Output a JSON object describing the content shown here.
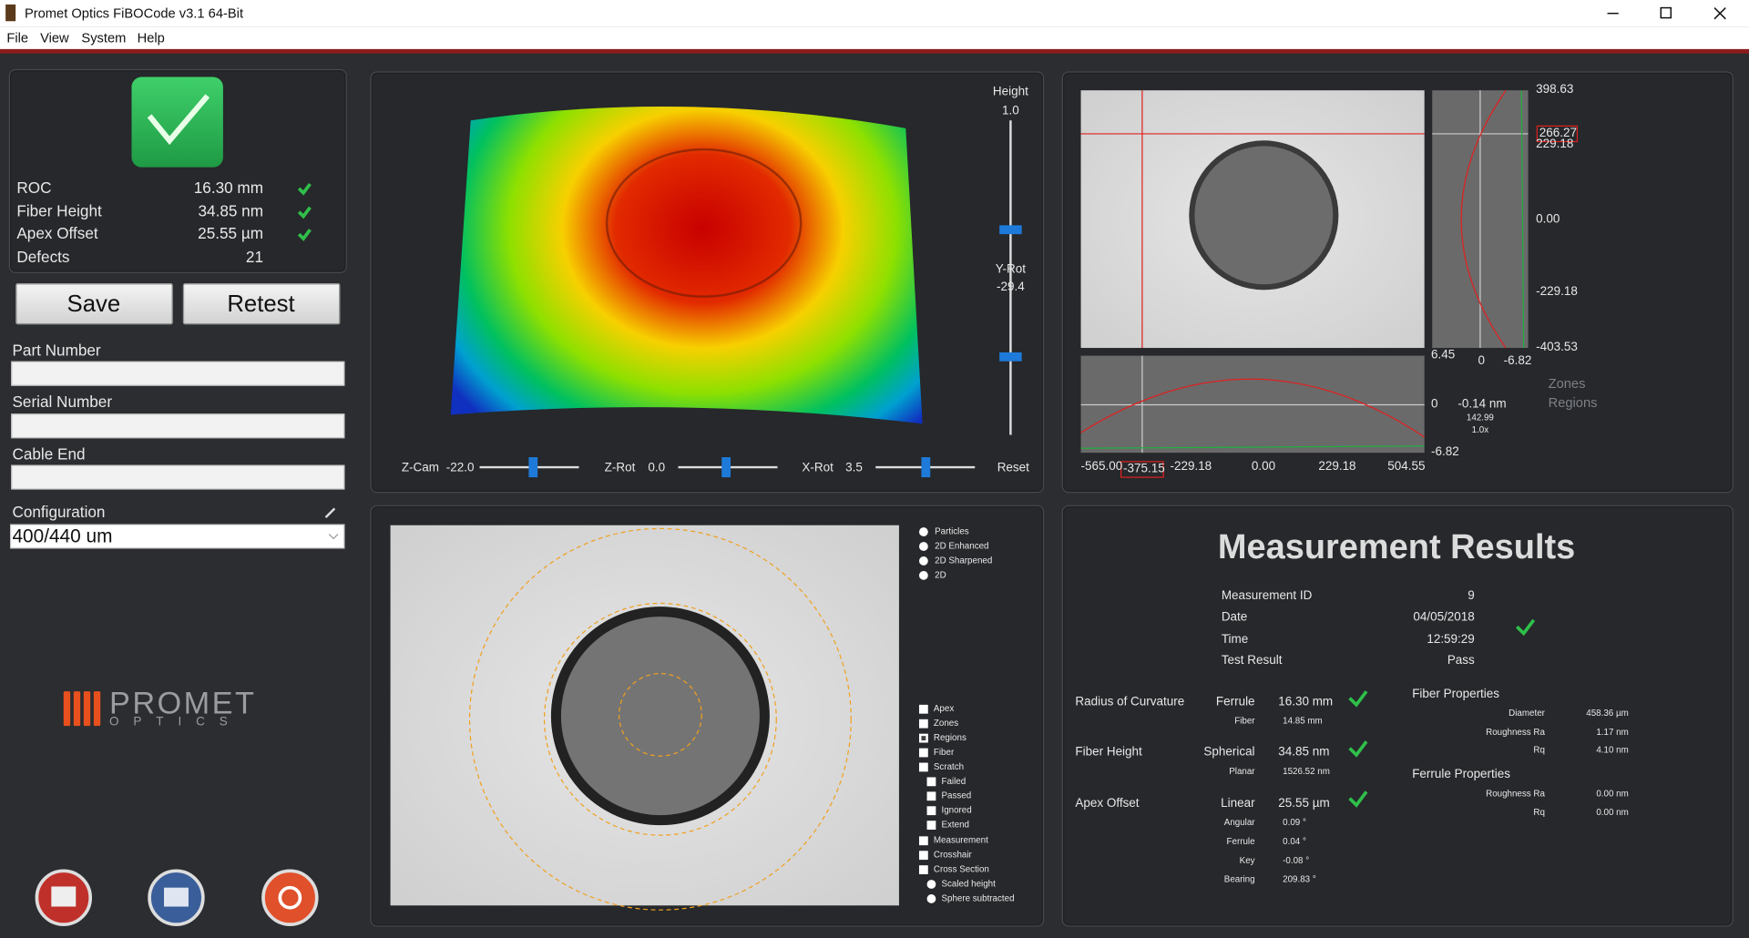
{
  "window": {
    "title": "Promet Optics FiBOCode v3.1 64-Bit",
    "menu": [
      "File",
      "View",
      "System",
      "Help"
    ]
  },
  "summary": {
    "rows": [
      {
        "label": "ROC",
        "value": "16.30 mm"
      },
      {
        "label": "Fiber Height",
        "value": "34.85 nm"
      },
      {
        "label": "Apex Offset",
        "value": "25.55 µm"
      },
      {
        "label": "Defects",
        "value": "21"
      }
    ]
  },
  "actions": [
    "Save",
    "Retest"
  ],
  "form": {
    "fields": [
      "Part Number",
      "Serial Number",
      "Cable End"
    ],
    "configuration": {
      "label": "Configuration",
      "value": "400/440 um"
    }
  },
  "logo": {
    "name": "PROMET",
    "sub": "OPTICS"
  },
  "view3d": {
    "height": {
      "label": "Height",
      "value": "1.0"
    },
    "yrot": {
      "label": "Y-Rot",
      "value": "-29.4"
    },
    "controls": [
      {
        "label": "Z-Cam",
        "value": "-22.0"
      },
      {
        "label": "Z-Rot",
        "value": "0.0"
      },
      {
        "label": "X-Rot",
        "value": "3.5"
      }
    ],
    "reset": "Reset"
  },
  "profile": {
    "y_labels": [
      "398.63",
      "229.18",
      "0.00",
      "-229.18",
      "-403.53"
    ],
    "cursor_y": "266.27",
    "side_scale": [
      "6.45",
      "0",
      "-6.82"
    ],
    "bottom_scale": [
      "0",
      "-6.82"
    ],
    "readout": [
      "-0.14 nm",
      "142.99",
      "1.0x"
    ],
    "x_labels": [
      "-565.00",
      "-229.18",
      "0.00",
      "229.18",
      "504.55"
    ],
    "cursor_x": "-375.15",
    "legend": [
      "Zones",
      "Regions"
    ]
  },
  "image": {
    "modes": [
      "Particles",
      "2D Enhanced",
      "2D Sharpened",
      "2D"
    ],
    "options": [
      {
        "label": "Apex",
        "checked": false,
        "indent": false
      },
      {
        "label": "Zones",
        "checked": false,
        "indent": false
      },
      {
        "label": "Regions",
        "checked": true,
        "indent": false
      },
      {
        "label": "Fiber",
        "checked": false,
        "indent": false
      },
      {
        "label": "Scratch",
        "checked": false,
        "indent": false
      },
      {
        "label": "Failed",
        "checked": false,
        "indent": true
      },
      {
        "label": "Passed",
        "checked": false,
        "indent": true
      },
      {
        "label": "Ignored",
        "checked": false,
        "indent": true
      },
      {
        "label": "Extend",
        "checked": false,
        "indent": true
      },
      {
        "label": "Measurement",
        "checked": false,
        "indent": false
      },
      {
        "label": "Crosshair",
        "checked": false,
        "indent": false
      },
      {
        "label": "Cross Section",
        "checked": false,
        "indent": false
      }
    ],
    "section_modes": [
      "Scaled height",
      "Sphere subtracted"
    ]
  },
  "results": {
    "title": "Measurement Results",
    "info": [
      {
        "label": "Measurement ID",
        "value": "9"
      },
      {
        "label": "Date",
        "value": "04/05/2018"
      },
      {
        "label": "Time",
        "value": "12:59:29"
      },
      {
        "label": "Test Result",
        "value": "Pass"
      }
    ],
    "metrics": [
      {
        "name": "Radius of Curvature",
        "rows": [
          {
            "label": "Ferrule",
            "value": "16.30 mm"
          },
          {
            "label": "Fiber",
            "value": "14.85 mm"
          }
        ]
      },
      {
        "name": "Fiber Height",
        "rows": [
          {
            "label": "Spherical",
            "value": "34.85 nm"
          },
          {
            "label": "Planar",
            "value": "1526.52 nm"
          }
        ]
      },
      {
        "name": "Apex Offset",
        "rows": [
          {
            "label": "Linear",
            "value": "25.55 µm"
          },
          {
            "label": "Angular",
            "value": "0.09 °"
          },
          {
            "label": "Ferrule",
            "value": "0.04 °"
          },
          {
            "label": "Key",
            "value": "-0.08 °"
          },
          {
            "label": "Bearing",
            "value": "209.83 °"
          }
        ]
      }
    ],
    "fiber_properties": {
      "title": "Fiber Properties",
      "rows": [
        {
          "label": "Diameter",
          "value": "458.36 µm"
        },
        {
          "label": "Roughness Ra",
          "value": "1.17 nm"
        },
        {
          "label": "Rq",
          "value": "4.10 nm"
        }
      ]
    },
    "ferrule_properties": {
      "title": "Ferrule Properties",
      "rows": [
        {
          "label": "Roughness Ra",
          "value": "0.00 nm"
        },
        {
          "label": "Rq",
          "value": "0.00 nm"
        }
      ]
    }
  }
}
